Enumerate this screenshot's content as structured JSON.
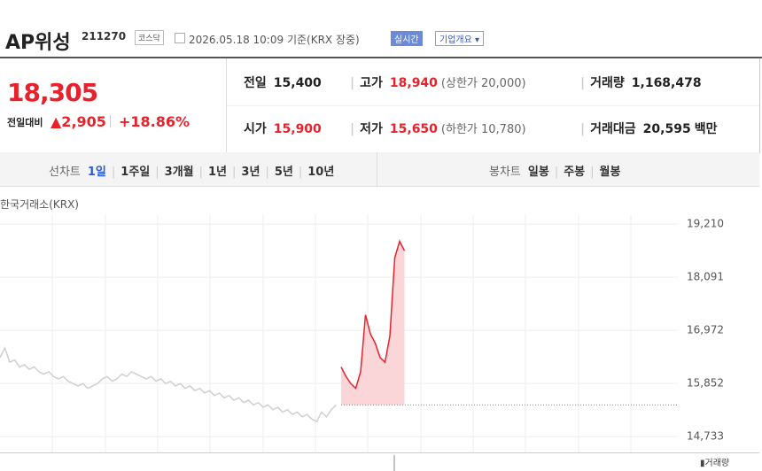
{
  "header": {
    "name": "AP위성",
    "code": "211270",
    "market": "코스닥",
    "timestamp": "2026.05.18 10:09",
    "basis": "기준(KRX 장중)",
    "realtime": "실시간",
    "overview": "기업개요"
  },
  "quote": {
    "price": "18,305",
    "change_label": "전일대비",
    "change": "▲2,905",
    "change_pct": "+18.86%",
    "items": [
      {
        "label": "전일",
        "value": "15,400"
      },
      {
        "label": "고가",
        "value": "18,940",
        "extra": "(상한가 20,000)"
      },
      {
        "label": "거래량",
        "value": "1,168,478"
      },
      {
        "label": "시가",
        "value": "15,900"
      },
      {
        "label": "저가",
        "value": "15,650",
        "extra": "(하한가 10,780)"
      },
      {
        "label": "거래대금",
        "value": "20,595",
        "unit": "백만"
      }
    ]
  },
  "tabs": {
    "line_label": "선차트",
    "line": [
      "1일",
      "1주일",
      "3개월",
      "1년",
      "3년",
      "5년",
      "10년"
    ],
    "candle_label": "봉차트",
    "candle": [
      "일봉",
      "주봉",
      "월봉"
    ]
  },
  "chart_data": {
    "type": "line",
    "source": "한국거래소(KRX)",
    "volume_label": "거래량",
    "ylim": [
      14400,
      19400
    ],
    "yticks": [
      {
        "value": 14733,
        "label": "14,733"
      },
      {
        "value": 15852,
        "label": "15,852"
      },
      {
        "value": 16972,
        "label": "16,972"
      },
      {
        "value": 18091,
        "label": "18,091"
      },
      {
        "value": 19210,
        "label": "19,210"
      }
    ],
    "grid": true,
    "baseline": 15400,
    "baseline_color": "#888888",
    "series": [
      {
        "color": "#cfcfcf",
        "values": [
          16400,
          16600,
          16300,
          16350,
          16200,
          16250,
          16150,
          16200,
          16100,
          16050,
          16100,
          16000,
          15950,
          16000,
          15900,
          15850,
          15800,
          15850,
          15750,
          15800,
          15850,
          15950,
          16000,
          15900,
          15950,
          16050,
          16000,
          16100,
          16050,
          16000,
          15950,
          16000,
          15900,
          15950,
          15850,
          15900,
          15800,
          15850,
          15750,
          15800,
          15700,
          15750,
          15650,
          15700,
          15600,
          15650,
          15550,
          15600,
          15500,
          15550,
          15450,
          15500,
          15400,
          15450,
          15350,
          15400,
          15300,
          15350,
          15250,
          15300,
          15200,
          15250,
          15150,
          15200,
          15100,
          15050,
          15250,
          15150,
          15300,
          15400
        ]
      },
      {
        "color": "#e8222c",
        "fill": "#fbd6d8",
        "values": [
          16200,
          16000,
          15850,
          15750,
          16100,
          17300,
          16900,
          16700,
          16400,
          16300,
          16850,
          18500,
          18850,
          18650
        ]
      }
    ]
  }
}
